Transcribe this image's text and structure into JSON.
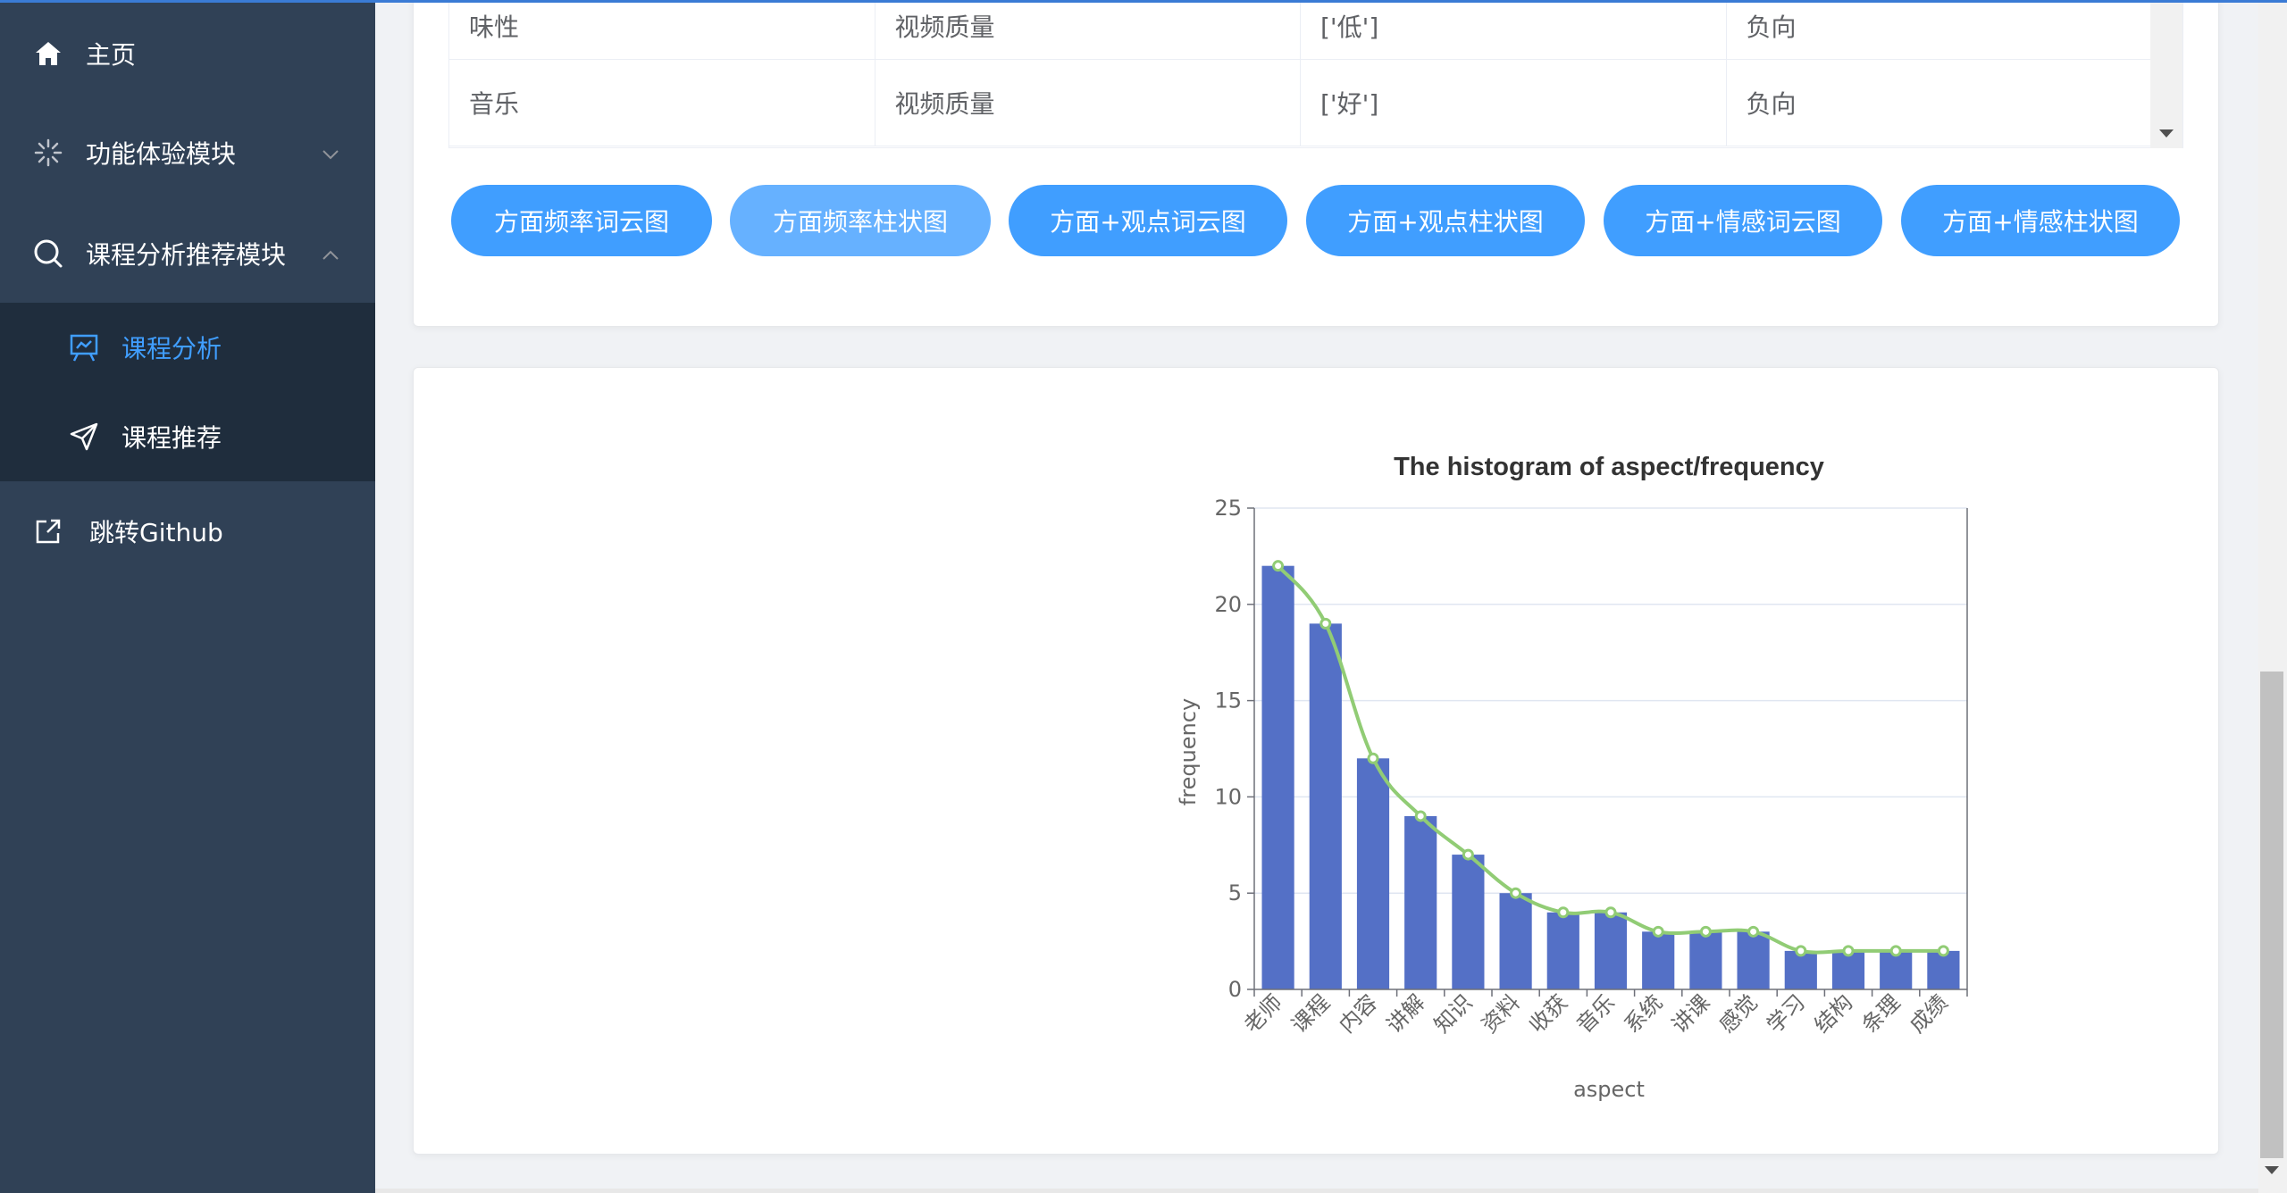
{
  "sidebar": {
    "home": "主页",
    "feature_module": "功能体验模块",
    "course_module": "课程分析推荐模块",
    "course_analysis": "课程分析",
    "course_recommend": "课程推荐",
    "github": "跳转Github"
  },
  "table": {
    "rows": [
      [
        "味性",
        "视频质量",
        "['低']",
        "负向"
      ],
      [
        "音乐",
        "视频质量",
        "['好']",
        "负向"
      ]
    ]
  },
  "buttons": [
    "方面频率词云图",
    "方面频率柱状图",
    "方面+观点词云图",
    "方面+观点柱状图",
    "方面+情感词云图",
    "方面+情感柱状图"
  ],
  "colors": {
    "sidebar_bg": "#304156",
    "submenu_bg": "#1f2d3d",
    "accent": "#409eff",
    "accent_light": "#66b1ff",
    "bar": "#5470c6",
    "line": "#91cc75"
  },
  "chart_data": {
    "type": "bar",
    "title": "The histogram of aspect/frequency",
    "xlabel": "aspect",
    "ylabel": "frequency",
    "ylim": [
      0,
      25
    ],
    "yticks": [
      0,
      5,
      10,
      15,
      20,
      25
    ],
    "categories": [
      "老师",
      "课程",
      "内容",
      "讲解",
      "知识",
      "资料",
      "收获",
      "音乐",
      "系统",
      "讲课",
      "感觉",
      "学习",
      "结构",
      "条理",
      "成绩"
    ],
    "values": [
      22,
      19,
      12,
      9,
      7,
      5,
      4,
      4,
      3,
      3,
      3,
      2,
      2,
      2,
      2
    ],
    "line_overlay": true,
    "grid": true
  }
}
